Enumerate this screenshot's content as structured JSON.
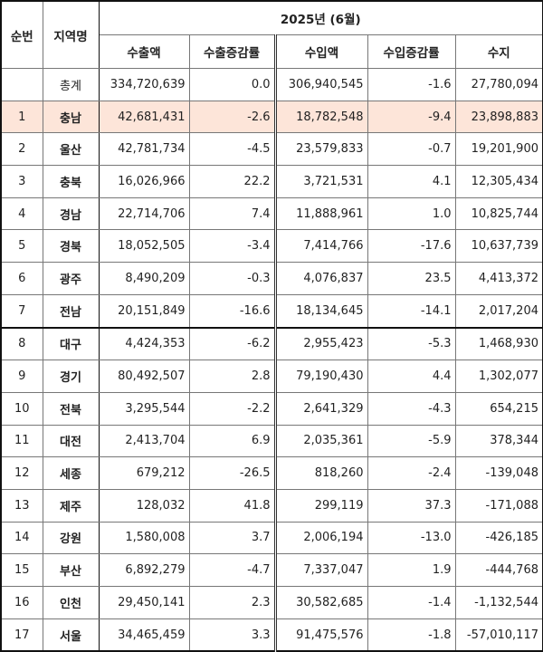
{
  "header": {
    "col_index": "순번",
    "col_region": "지역명",
    "period": "2025년 (6월)",
    "columns": [
      "수출액",
      "수출증감률",
      "수입액",
      "수입증감률",
      "수지"
    ]
  },
  "highlight_color": "#fde5d9",
  "rows": [
    {
      "idx": "",
      "region": "총계",
      "export": "334,720,639",
      "export_rate": "0.0",
      "import": "306,940,545",
      "import_rate": "-1.6",
      "balance": "27,780,094"
    },
    {
      "idx": "1",
      "region": "충남",
      "export": "42,681,431",
      "export_rate": "-2.6",
      "import": "18,782,548",
      "import_rate": "-9.4",
      "balance": "23,898,883"
    },
    {
      "idx": "2",
      "region": "울산",
      "export": "42,781,734",
      "export_rate": "-4.5",
      "import": "23,579,833",
      "import_rate": "-0.7",
      "balance": "19,201,900"
    },
    {
      "idx": "3",
      "region": "충북",
      "export": "16,026,966",
      "export_rate": "22.2",
      "import": "3,721,531",
      "import_rate": "4.1",
      "balance": "12,305,434"
    },
    {
      "idx": "4",
      "region": "경남",
      "export": "22,714,706",
      "export_rate": "7.4",
      "import": "11,888,961",
      "import_rate": "1.0",
      "balance": "10,825,744"
    },
    {
      "idx": "5",
      "region": "경북",
      "export": "18,052,505",
      "export_rate": "-3.4",
      "import": "7,414,766",
      "import_rate": "-17.6",
      "balance": "10,637,739"
    },
    {
      "idx": "6",
      "region": "광주",
      "export": "8,490,209",
      "export_rate": "-0.3",
      "import": "4,076,837",
      "import_rate": "23.5",
      "balance": "4,413,372"
    },
    {
      "idx": "7",
      "region": "전남",
      "export": "20,151,849",
      "export_rate": "-16.6",
      "import": "18,134,645",
      "import_rate": "-14.1",
      "balance": "2,017,204"
    },
    {
      "idx": "8",
      "region": "대구",
      "export": "4,424,353",
      "export_rate": "-6.2",
      "import": "2,955,423",
      "import_rate": "-5.3",
      "balance": "1,468,930"
    },
    {
      "idx": "9",
      "region": "경기",
      "export": "80,492,507",
      "export_rate": "2.8",
      "import": "79,190,430",
      "import_rate": "4.4",
      "balance": "1,302,077"
    },
    {
      "idx": "10",
      "region": "전북",
      "export": "3,295,544",
      "export_rate": "-2.2",
      "import": "2,641,329",
      "import_rate": "-4.3",
      "balance": "654,215"
    },
    {
      "idx": "11",
      "region": "대전",
      "export": "2,413,704",
      "export_rate": "6.9",
      "import": "2,035,361",
      "import_rate": "-5.9",
      "balance": "378,344"
    },
    {
      "idx": "12",
      "region": "세종",
      "export": "679,212",
      "export_rate": "-26.5",
      "import": "818,260",
      "import_rate": "-2.4",
      "balance": "-139,048"
    },
    {
      "idx": "13",
      "region": "제주",
      "export": "128,032",
      "export_rate": "41.8",
      "import": "299,119",
      "import_rate": "37.3",
      "balance": "-171,088"
    },
    {
      "idx": "14",
      "region": "강원",
      "export": "1,580,008",
      "export_rate": "3.7",
      "import": "2,006,194",
      "import_rate": "-13.0",
      "balance": "-426,185"
    },
    {
      "idx": "15",
      "region": "부산",
      "export": "6,892,279",
      "export_rate": "-4.7",
      "import": "7,337,047",
      "import_rate": "1.9",
      "balance": "-444,768"
    },
    {
      "idx": "16",
      "region": "인천",
      "export": "29,450,141",
      "export_rate": "2.3",
      "import": "30,582,685",
      "import_rate": "-1.4",
      "balance": "-1,132,544"
    },
    {
      "idx": "17",
      "region": "서울",
      "export": "34,465,459",
      "export_rate": "3.3",
      "import": "91,475,576",
      "import_rate": "-1.8",
      "balance": "-57,010,117"
    }
  ]
}
